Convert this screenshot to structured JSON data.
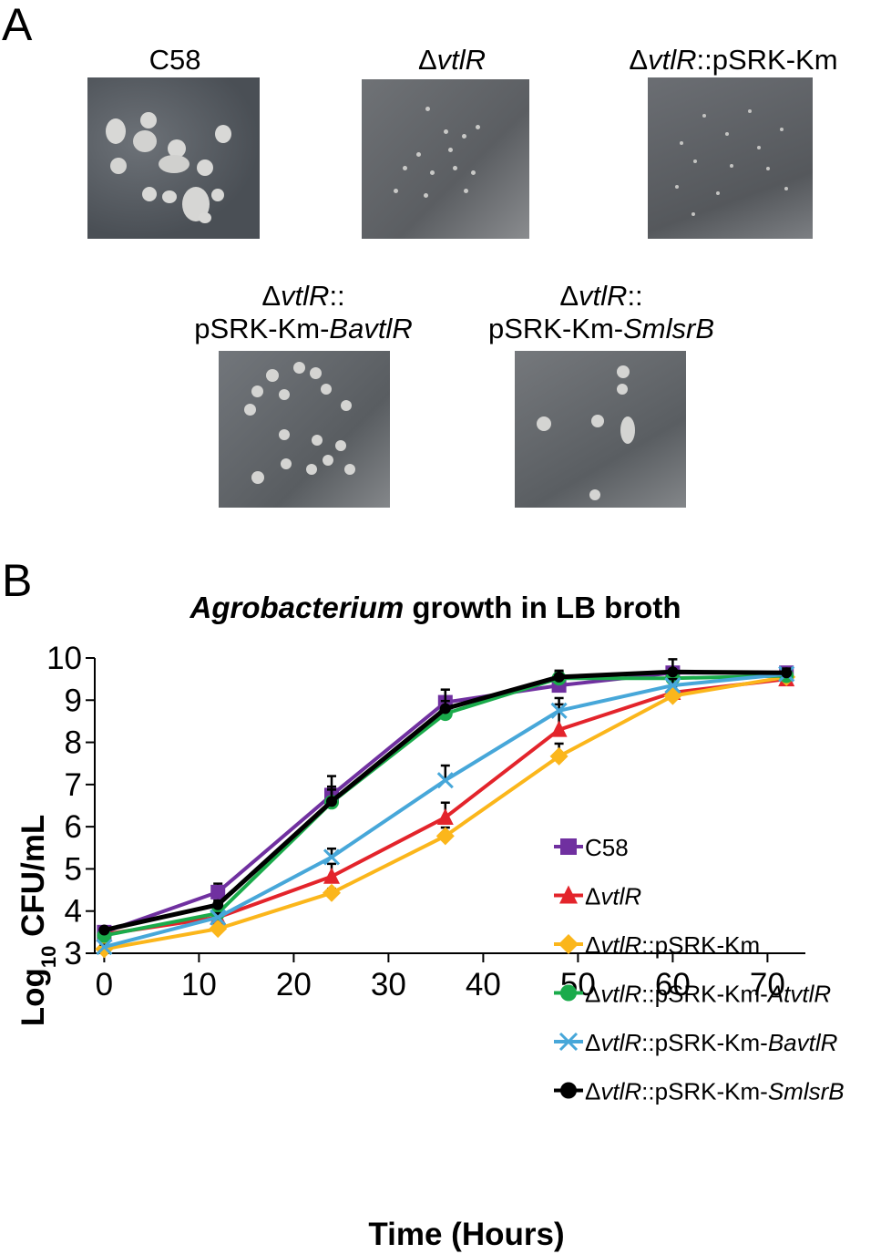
{
  "panel_a": {
    "letter": "A",
    "plates": [
      {
        "label_lines": [
          [
            {
              "t": "C58",
              "i": false
            }
          ]
        ]
      },
      {
        "label_lines": [
          [
            {
              "t": "Δ",
              "i": false
            },
            {
              "t": "vtlR",
              "i": true
            }
          ]
        ]
      },
      {
        "label_lines": [
          [
            {
              "t": "Δ",
              "i": false
            },
            {
              "t": "vtlR",
              "i": true
            },
            {
              "t": "::pSRK-Km",
              "i": false
            }
          ]
        ]
      },
      {
        "label_lines": [
          [
            {
              "t": "Δ",
              "i": false
            },
            {
              "t": "vtlR",
              "i": true
            },
            {
              "t": "::",
              "i": false
            }
          ],
          [
            {
              "t": "pSRK-Km-",
              "i": false
            },
            {
              "t": "BavtlR",
              "i": true
            }
          ]
        ]
      },
      {
        "label_lines": [
          [
            {
              "t": "Δ",
              "i": false
            },
            {
              "t": "vtlR",
              "i": true
            },
            {
              "t": "::",
              "i": false
            }
          ],
          [
            {
              "t": "pSRK-Km-",
              "i": false
            },
            {
              "t": "SmlsrB",
              "i": true
            }
          ]
        ]
      }
    ]
  },
  "panel_b": {
    "letter": "B"
  },
  "chart_data": {
    "type": "line",
    "title_parts": [
      {
        "t": "Agrobacterium",
        "i": true
      },
      {
        "t": " growth in LB broth",
        "i": false
      }
    ],
    "xlabel": "Time (Hours)",
    "ylabel_parts": [
      {
        "t": "Log",
        "sub": false
      },
      {
        "t": "10",
        "sub": true
      },
      {
        "t": " CFU/mL",
        "sub": false
      }
    ],
    "xlim": [
      -1,
      74
    ],
    "ylim": [
      3,
      10
    ],
    "xticks": [
      0,
      10,
      20,
      30,
      40,
      50,
      60,
      70
    ],
    "yticks": [
      3,
      4,
      5,
      6,
      7,
      8,
      9,
      10
    ],
    "x": [
      0,
      12,
      24,
      36,
      48,
      60,
      72
    ],
    "grid": false,
    "legend_position": "lower-right",
    "series": [
      {
        "key": "C58",
        "label_parts": [
          {
            "t": "C58",
            "i": false
          }
        ],
        "color": "#7030a0",
        "marker": "square",
        "values": [
          3.5,
          4.45,
          6.75,
          8.95,
          9.35,
          9.65,
          9.65
        ],
        "err": [
          0.05,
          0.2,
          0.45,
          0.3,
          0.15,
          0.1,
          0.1
        ]
      },
      {
        "key": "dvtlR",
        "label_parts": [
          {
            "t": "Δ",
            "i": false
          },
          {
            "t": "vtlR",
            "i": true
          }
        ],
        "color": "#e3242b",
        "marker": "triangle",
        "values": [
          3.45,
          3.85,
          4.82,
          6.22,
          8.3,
          9.18,
          9.5
        ],
        "err": [
          0.05,
          0.1,
          0.3,
          0.35,
          0.6,
          0.15,
          0.2
        ]
      },
      {
        "key": "dvtlR_pSRK",
        "label_parts": [
          {
            "t": "Δ",
            "i": false
          },
          {
            "t": "vtlR",
            "i": true
          },
          {
            "t": "::pSRK-Km",
            "i": false
          }
        ],
        "color": "#fbb61b",
        "marker": "diamond",
        "values": [
          3.1,
          3.58,
          4.43,
          5.78,
          7.67,
          9.1,
          9.55
        ],
        "err": [
          0.05,
          0.1,
          0.1,
          0.2,
          0.3,
          0.1,
          0.1
        ]
      },
      {
        "key": "dvtlR_At",
        "label_parts": [
          {
            "t": "Δ",
            "i": false
          },
          {
            "t": "vtlR",
            "i": true
          },
          {
            "t": "::pSRK-Km-",
            "i": false
          },
          {
            "t": "AtvtlR",
            "i": true
          }
        ],
        "color": "#1aab4b",
        "marker": "circle",
        "values": [
          3.42,
          3.95,
          6.58,
          8.68,
          9.52,
          9.52,
          9.58
        ],
        "err": [
          0.05,
          0.15,
          0.3,
          0.3,
          0.15,
          0.1,
          0.1
        ]
      },
      {
        "key": "dvtlR_Ba",
        "label_parts": [
          {
            "t": "Δ",
            "i": false
          },
          {
            "t": "vtlR",
            "i": true
          },
          {
            "t": "::pSRK-Km-",
            "i": false
          },
          {
            "t": "BavtlR",
            "i": true
          }
        ],
        "color": "#47a7d9",
        "marker": "x",
        "values": [
          3.15,
          3.85,
          5.28,
          7.1,
          8.75,
          9.35,
          9.62
        ],
        "err": [
          0.05,
          0.1,
          0.2,
          0.35,
          0.3,
          0.15,
          0.1
        ]
      },
      {
        "key": "dvtlR_Sm",
        "label_parts": [
          {
            "t": "Δ",
            "i": false
          },
          {
            "t": "vtlR",
            "i": true
          },
          {
            "t": "::pSRK-Km-",
            "i": false
          },
          {
            "t": "SmlsrB",
            "i": true
          }
        ],
        "color": "#000000",
        "marker": "circle",
        "values": [
          3.55,
          4.15,
          6.6,
          8.8,
          9.55,
          9.67,
          9.65
        ],
        "err": [
          0.05,
          0.1,
          0.35,
          0.45,
          0.15,
          0.3,
          0.1
        ]
      }
    ]
  }
}
